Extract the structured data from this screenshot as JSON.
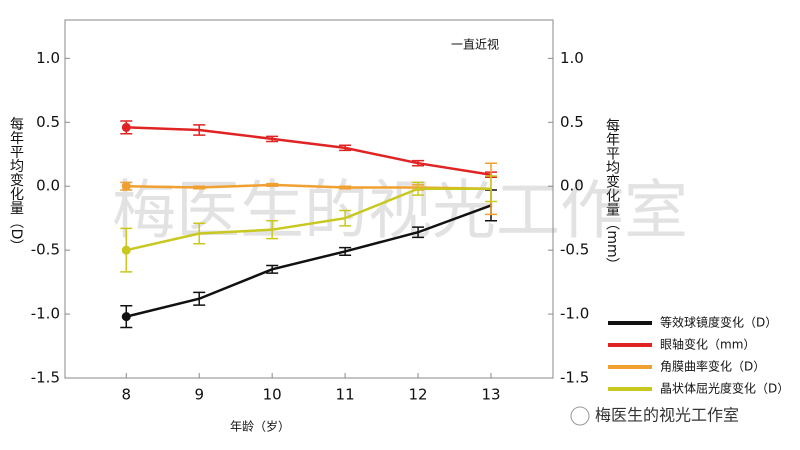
{
  "chart_data": {
    "type": "line",
    "annotation": "一直近视",
    "x_label": "年龄（岁）",
    "y_label": "每年平均变化量（D）",
    "y2_label": "每年平均变化量（mm）",
    "x": [
      8,
      9,
      10,
      11,
      12,
      13
    ],
    "xlim": [
      7.16,
      13.85
    ],
    "xticks": [
      8,
      9,
      10,
      11,
      12,
      13
    ],
    "ylim": [
      -1.5,
      1.3
    ],
    "yticks": [
      -1.5,
      {
        "value": -1,
        "label": "-1.0"
      },
      -0.5,
      {
        "value": 0,
        "label": "0.0"
      },
      0.5,
      {
        "value": 1,
        "label": "1.0"
      }
    ],
    "y2lim": [
      -1.5,
      1.3
    ],
    "y2ticks": [
      -1.5,
      {
        "value": -1,
        "label": "-1.0"
      },
      -0.5,
      {
        "value": 0,
        "label": "0.0"
      },
      0.5,
      {
        "value": 1,
        "label": "1.0"
      }
    ],
    "series": [
      {
        "name": "等效球镜度变化（D）",
        "color": "#111111",
        "values": [
          -1.02,
          -0.88,
          -0.65,
          -0.51,
          -0.36,
          -0.15
        ],
        "errors": [
          0.085,
          0.05,
          0.03,
          0.03,
          0.04,
          0.12
        ]
      },
      {
        "name": "眼轴变化（mm）",
        "color": "#e02424",
        "axis": "y2",
        "values": [
          0.46,
          0.44,
          0.37,
          0.3,
          0.18,
          0.09
        ],
        "errors": [
          0.05,
          0.04,
          0.02,
          0.02,
          0.02,
          0.02
        ]
      },
      {
        "name": "角膜曲率变化（D）",
        "color": "#f0a030",
        "values": [
          0.0,
          -0.01,
          0.01,
          -0.01,
          -0.01,
          -0.02
        ],
        "errors": [
          0.03,
          0.01,
          0.01,
          0.01,
          0.02,
          0.2
        ]
      },
      {
        "name": "晶状体屈光度变化（D）",
        "color": "#c8c820",
        "values": [
          -0.5,
          -0.37,
          -0.34,
          -0.25,
          -0.02,
          -0.02
        ],
        "errors": [
          0.17,
          0.08,
          0.07,
          0.06,
          0.05,
          0.1
        ]
      }
    ]
  },
  "watermark": "梅医生的视光工作室",
  "logo_text": "梅医生的视光工作室"
}
